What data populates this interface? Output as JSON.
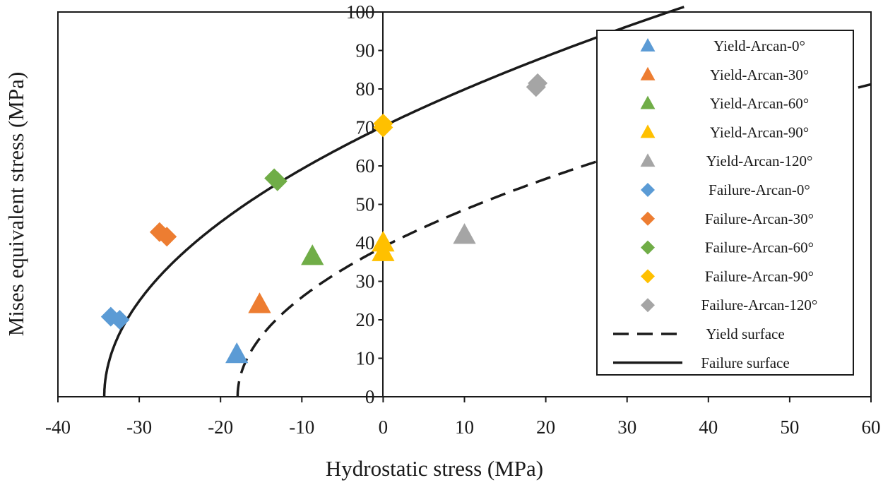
{
  "chart_data": {
    "type": "scatter",
    "xlabel": "Hydrostatic stress (MPa)",
    "ylabel": "Mises equivalent stress (MPa)",
    "xlim": [
      -40,
      60
    ],
    "ylim": [
      0,
      100
    ],
    "x_ticks": [
      "-40",
      "-30",
      "-20",
      "-10",
      "0",
      "10",
      "20",
      "30",
      "40",
      "50",
      "60"
    ],
    "y_ticks": [
      "0",
      "10",
      "20",
      "30",
      "40",
      "50",
      "60",
      "70",
      "80",
      "90",
      "100"
    ],
    "x_tick_values": [
      -40,
      -30,
      -20,
      -10,
      0,
      10,
      20,
      30,
      40,
      50,
      60
    ],
    "y_tick_values": [
      0,
      10,
      20,
      30,
      40,
      50,
      60,
      70,
      80,
      90,
      100
    ],
    "legend_position": "top-right",
    "series": [
      {
        "name": "Yield-Arcan-0°",
        "marker": "triangle",
        "color": "#5B9BD5",
        "points": [
          [
            -18,
            11
          ]
        ]
      },
      {
        "name": "Yield-Arcan-30°",
        "marker": "triangle",
        "color": "#ED7D31",
        "points": [
          [
            -15.2,
            24
          ]
        ]
      },
      {
        "name": "Yield-Arcan-60°",
        "marker": "triangle",
        "color": "#70AD47",
        "points": [
          [
            -8.7,
            36.5
          ]
        ]
      },
      {
        "name": "Yield-Arcan-90°",
        "marker": "triangle",
        "color": "#FFC000",
        "points": [
          [
            0,
            40
          ],
          [
            0,
            37.5
          ]
        ]
      },
      {
        "name": "Yield-Arcan-120°",
        "marker": "triangle",
        "color": "#A5A5A5",
        "points": [
          [
            10,
            42
          ]
        ]
      },
      {
        "name": "Failure-Arcan-0°",
        "marker": "diamond",
        "color": "#5B9BD5",
        "points": [
          [
            -33.5,
            20.8
          ],
          [
            -32.4,
            20
          ]
        ]
      },
      {
        "name": "Failure-Arcan-30°",
        "marker": "diamond",
        "color": "#ED7D31",
        "points": [
          [
            -27.5,
            42.8
          ],
          [
            -26.6,
            41.6
          ]
        ]
      },
      {
        "name": "Failure-Arcan-60°",
        "marker": "diamond",
        "color": "#70AD47",
        "points": [
          [
            -13.4,
            56.8
          ],
          [
            -13.0,
            56.0
          ]
        ]
      },
      {
        "name": "Failure-Arcan-90°",
        "marker": "diamond",
        "color": "#FFC000",
        "points": [
          [
            0,
            71
          ],
          [
            0,
            70
          ]
        ]
      },
      {
        "name": "Failure-Arcan-120°",
        "marker": "diamond",
        "color": "#A5A5A5",
        "points": [
          [
            19,
            81.5
          ],
          [
            18.8,
            80.5
          ]
        ]
      }
    ],
    "curves": [
      {
        "name": "Yield surface",
        "style": "dashed",
        "color": "#1a1a1a",
        "x0": -17.9,
        "coefficient": 9.2,
        "x_end": 60
      },
      {
        "name": "Failure surface",
        "style": "solid",
        "color": "#1a1a1a",
        "x0": -34.3,
        "coefficient": 12.0,
        "x_end": 37
      }
    ]
  }
}
